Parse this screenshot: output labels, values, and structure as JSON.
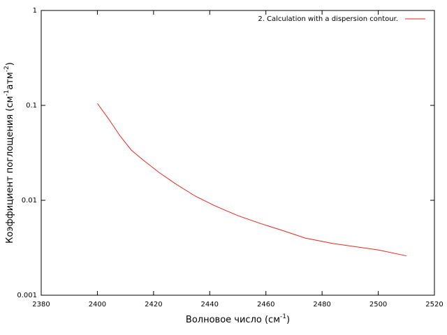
{
  "chart_data": {
    "type": "line",
    "xlabel": [
      "Волновое число (см",
      "-1",
      ")"
    ],
    "ylabel": [
      "Коэффициент поглощения (см",
      "-1",
      "атм",
      "-2",
      ")"
    ],
    "x": [
      2400,
      2404,
      2408,
      2412,
      2416,
      2422,
      2428,
      2435,
      2442,
      2450,
      2458,
      2466,
      2474,
      2484,
      2500,
      2510
    ],
    "series": [
      {
        "name": "2. Calculation with a dispersion contour.",
        "color": "#e8261c",
        "values": [
          0.105,
          0.072,
          0.048,
          0.034,
          0.027,
          0.0196,
          0.0148,
          0.011,
          0.0087,
          0.0069,
          0.0057,
          0.0048,
          0.004,
          0.0035,
          0.003,
          0.0026
        ]
      }
    ],
    "xlim": [
      2380,
      2520
    ],
    "xticks": [
      2380,
      2400,
      2420,
      2440,
      2460,
      2480,
      2500,
      2520
    ],
    "ylim": [
      0.001,
      1
    ],
    "yticks": [
      0.001,
      0.01,
      0.1,
      1
    ],
    "log_y": true,
    "grid": false,
    "legend": "top-right"
  }
}
